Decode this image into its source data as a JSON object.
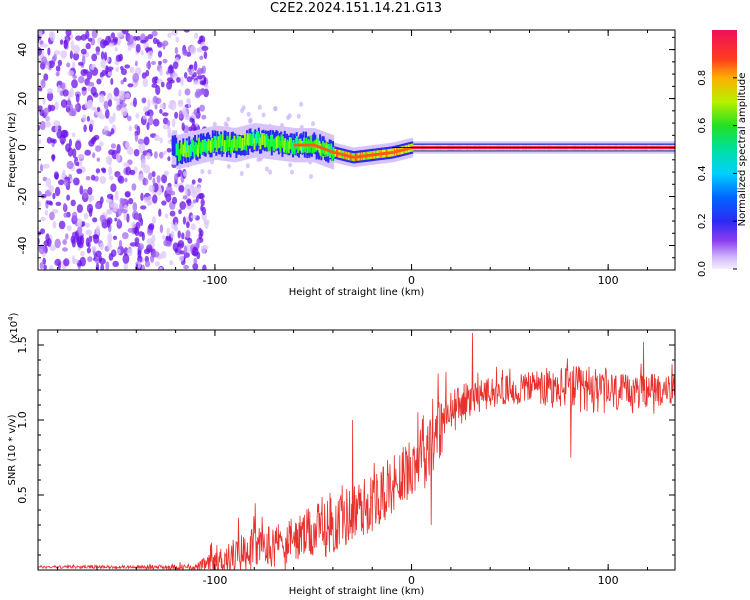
{
  "title": "C2E2.2024.151.14.21.G13",
  "colorbar": {
    "label": "Normalized spectral amplitude",
    "ticks": [
      "0.0",
      "0.2",
      "0.4",
      "0.6",
      "0.8"
    ],
    "tick_values": [
      0.0,
      0.2,
      0.4,
      0.6,
      0.8
    ],
    "range": [
      0,
      1
    ],
    "colormap": "hsv-rainbow (magenta → blue → cyan → green → yellow → red → pink)"
  },
  "chart_data": [
    {
      "type": "heatmap",
      "xlabel": "Height of straight line (km)",
      "ylabel": "Frequency (Hz)",
      "xlim": [
        -190,
        134
      ],
      "ylim": [
        -50,
        48
      ],
      "xticks": [
        -100,
        0,
        100
      ],
      "yticks": [
        -40,
        -20,
        0,
        20,
        40
      ],
      "xtick_labels": [
        "-100",
        "0",
        "100"
      ],
      "ytick_labels": [
        "-40",
        "-20",
        "0",
        "20",
        "40"
      ],
      "colors": {
        "noise": "#7a2cf0",
        "track_core": "#ff2050",
        "track_edge": "#00cc66"
      },
      "description_points": {
        "noise_region_x": [
          -190,
          -108
        ],
        "track_x": [
          -120,
          -100,
          -90,
          -80,
          -70,
          -60,
          -50,
          -40,
          -30,
          -20,
          -10,
          0,
          10,
          20,
          40,
          60,
          80,
          100,
          120,
          134
        ],
        "track_y": [
          -2,
          2,
          1,
          3,
          2,
          1,
          1,
          -2,
          -4,
          -3,
          -2,
          0,
          0,
          0,
          0,
          0,
          0,
          0,
          0,
          0
        ]
      }
    },
    {
      "type": "line",
      "xlabel": "Height of straight line (km)",
      "ylabel": "SNR (10 * v/v)",
      "multiplier": "(x10",
      "multiplier_exp": "4",
      "multiplier_close": ")",
      "xlim": [
        -190,
        134
      ],
      "ylim": [
        0,
        1.6
      ],
      "xticks": [
        -100,
        0,
        100
      ],
      "yticks": [
        0.5,
        1.0,
        1.5
      ],
      "xtick_labels": [
        "-100",
        "0",
        "100"
      ],
      "ytick_labels": [
        "0.5",
        "1.0",
        "1.5"
      ],
      "color": "#e8302c",
      "envelope": {
        "x": [
          -190,
          -150,
          -110,
          -100,
          -95,
          -90,
          -80,
          -70,
          -60,
          -50,
          -40,
          -30,
          -20,
          -10,
          0,
          5,
          10,
          15,
          20,
          30,
          40,
          50,
          60,
          70,
          80,
          90,
          100,
          110,
          120,
          134
        ],
        "base": [
          0.02,
          0.02,
          0.02,
          0.05,
          0.08,
          0.1,
          0.15,
          0.17,
          0.2,
          0.25,
          0.3,
          0.38,
          0.45,
          0.55,
          0.7,
          0.8,
          0.88,
          0.95,
          1.05,
          1.15,
          1.18,
          1.2,
          1.22,
          1.2,
          1.22,
          1.2,
          1.18,
          1.18,
          1.2,
          1.2
        ],
        "amp": [
          0.01,
          0.01,
          0.02,
          0.08,
          0.1,
          0.12,
          0.15,
          0.15,
          0.15,
          0.18,
          0.2,
          0.2,
          0.2,
          0.18,
          0.2,
          0.25,
          0.25,
          0.2,
          0.15,
          0.12,
          0.1,
          0.1,
          0.12,
          0.15,
          0.15,
          0.15,
          0.15,
          0.12,
          0.12,
          0.1
        ]
      },
      "notable_points": [
        {
          "x": -30,
          "y": 1.0
        },
        {
          "x": 10,
          "y": 0.3
        },
        {
          "x": 31,
          "y": 1.58
        },
        {
          "x": 81,
          "y": 0.75
        },
        {
          "x": 118,
          "y": 1.52
        }
      ]
    }
  ]
}
